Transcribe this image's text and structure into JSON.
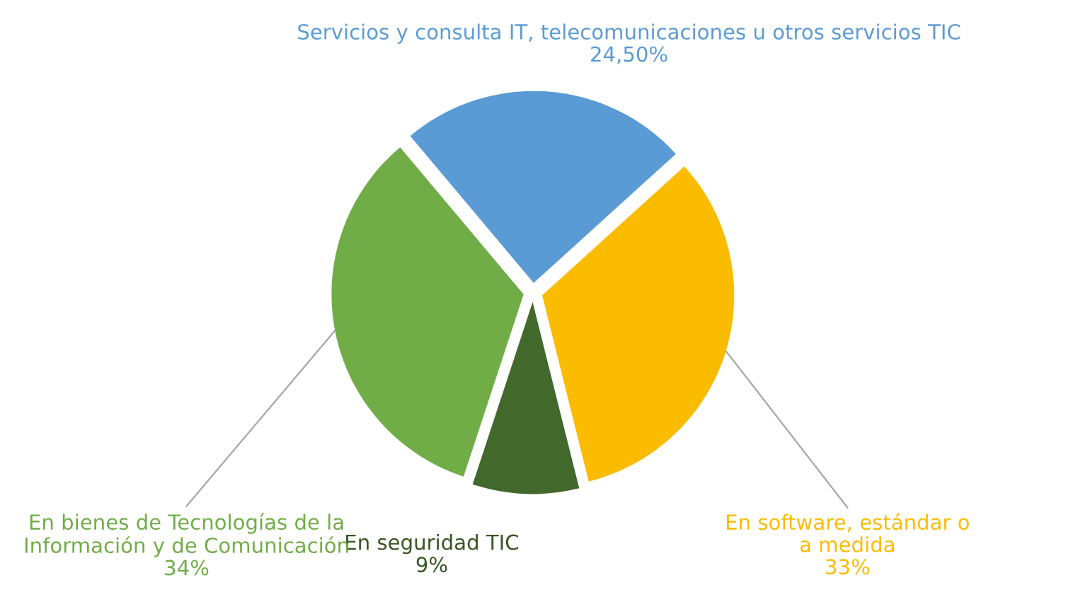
{
  "chart_data": {
    "type": "pie",
    "categories": [
      "Servicios y consulta IT, telecomunicaciones u otros servicios TIC",
      "En software, estándar o\na medida",
      "En seguridad TIC",
      "En bienes de Tecnologías de la\nInformación y de Comunicación"
    ],
    "values": [
      24.5,
      33,
      9,
      34
    ],
    "colors": [
      "#5b9bd5",
      "#fbbc00",
      "#43682b",
      "#70ad47"
    ],
    "value_labels": [
      "24,50%",
      "33%",
      "9%",
      "34%"
    ]
  }
}
